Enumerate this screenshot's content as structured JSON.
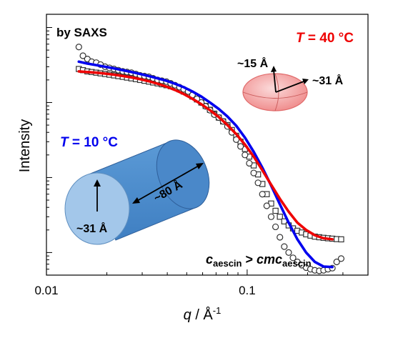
{
  "chart_data": {
    "type": "scatter",
    "title": "",
    "xlabel": {
      "var": "q",
      "unit": " / Å",
      "sup": "-1"
    },
    "ylabel": "Intensity",
    "xscale": "log",
    "yscale": "log",
    "xlim": [
      0.01,
      0.4
    ],
    "x_ticks": [
      {
        "value": 0.01,
        "label": "0.01"
      },
      {
        "value": 0.1,
        "label": "0.1"
      }
    ],
    "y_ticks_unlabeled": [
      0.1,
      1,
      10,
      100
    ],
    "ylim": [
      0.05,
      150
    ],
    "series": [
      {
        "marker": "circle",
        "condition": "T = 10 °C",
        "x": [
          0.0145,
          0.0152,
          0.016,
          0.0168,
          0.0177,
          0.0186,
          0.0196,
          0.0206,
          0.0217,
          0.0228,
          0.024,
          0.0252,
          0.0265,
          0.0279,
          0.0293,
          0.0308,
          0.0324,
          0.034,
          0.0358,
          0.0376,
          0.0396,
          0.0416,
          0.0437,
          0.046,
          0.0483,
          0.0508,
          0.0534,
          0.0562,
          0.0591,
          0.0621,
          0.0653,
          0.0686,
          0.0722,
          0.0759,
          0.0798,
          0.0839,
          0.0882,
          0.0927,
          0.0975,
          0.1025,
          0.1078,
          0.1133,
          0.1191,
          0.1252,
          0.1317,
          0.1385,
          0.1456,
          0.1531,
          0.161,
          0.1692,
          0.1779,
          0.1871,
          0.1967,
          0.2068,
          0.2174,
          0.2286,
          0.2403,
          0.2527,
          0.2657,
          0.2793,
          0.294
        ],
        "y": [
          55,
          42,
          38,
          35,
          34,
          32,
          30,
          29,
          28,
          27,
          26,
          25.5,
          25,
          24,
          23,
          22.5,
          22,
          21,
          20,
          19.5,
          19,
          18,
          17,
          16,
          15,
          14,
          12.6,
          11.2,
          10,
          8.9,
          7.9,
          6.9,
          6.3,
          5.6,
          4.8,
          4,
          3.2,
          2.6,
          2,
          1.55,
          1.15,
          0.85,
          0.6,
          0.42,
          0.3,
          0.22,
          0.16,
          0.12,
          0.1,
          0.085,
          0.075,
          0.068,
          0.063,
          0.06,
          0.058,
          0.057,
          0.058,
          0.06,
          0.062,
          0.075,
          0.083
        ]
      },
      {
        "marker": "square",
        "condition": "T = 40 °C",
        "x": [
          0.0145,
          0.0152,
          0.016,
          0.0168,
          0.0177,
          0.0186,
          0.0196,
          0.0206,
          0.0217,
          0.0228,
          0.024,
          0.0252,
          0.0265,
          0.0279,
          0.0293,
          0.0308,
          0.0324,
          0.034,
          0.0358,
          0.0376,
          0.0396,
          0.0416,
          0.0437,
          0.046,
          0.0483,
          0.0508,
          0.0534,
          0.0562,
          0.0591,
          0.0621,
          0.0653,
          0.0686,
          0.0722,
          0.0759,
          0.0798,
          0.0839,
          0.0882,
          0.0927,
          0.0975,
          0.1025,
          0.1078,
          0.1133,
          0.1191,
          0.1252,
          0.1317,
          0.1385,
          0.1456,
          0.1531,
          0.161,
          0.1692,
          0.1779,
          0.1871,
          0.1967,
          0.2068,
          0.2174,
          0.2286,
          0.2403,
          0.2527,
          0.2657,
          0.2793,
          0.294
        ],
        "y": [
          28,
          27,
          26,
          25.5,
          25,
          24.5,
          24,
          23.5,
          23,
          22.5,
          22,
          21.5,
          21,
          20.5,
          20,
          19.5,
          19,
          18.5,
          18,
          17.5,
          17,
          16.5,
          16,
          15,
          14,
          13.2,
          12,
          11,
          10,
          9,
          8,
          7.1,
          6.3,
          5.6,
          5,
          4.3,
          3.6,
          3,
          2.4,
          1.9,
          1.45,
          1.1,
          0.82,
          0.6,
          0.45,
          0.36,
          0.3,
          0.26,
          0.23,
          0.21,
          0.195,
          0.185,
          0.175,
          0.168,
          0.163,
          0.16,
          0.157,
          0.155,
          0.153,
          0.151,
          0.15
        ]
      },
      {
        "marker": "line",
        "color": "#0000ee",
        "condition": "T = 10 °C",
        "x": [
          0.0145,
          0.016,
          0.0177,
          0.0196,
          0.0217,
          0.024,
          0.0265,
          0.0293,
          0.0324,
          0.0358,
          0.0396,
          0.0437,
          0.0483,
          0.0534,
          0.0591,
          0.0653,
          0.0722,
          0.0798,
          0.0882,
          0.0975,
          0.1078,
          0.1191,
          0.1317,
          0.1456,
          0.161,
          0.1779,
          0.1967,
          0.2174,
          0.2403,
          0.2657
        ],
        "y": [
          35,
          33,
          31.5,
          30,
          28.5,
          27,
          25.5,
          24,
          22.5,
          21,
          19.5,
          17.8,
          16,
          14,
          12,
          10,
          8.2,
          6.5,
          4.9,
          3.4,
          2.2,
          1.35,
          0.78,
          0.44,
          0.25,
          0.15,
          0.1,
          0.075,
          0.065,
          0.064
        ]
      },
      {
        "marker": "line",
        "color": "#ee0000",
        "condition": "T = 40 °C",
        "x": [
          0.0145,
          0.016,
          0.0177,
          0.0196,
          0.0217,
          0.024,
          0.0265,
          0.0293,
          0.0324,
          0.0358,
          0.0396,
          0.0437,
          0.0483,
          0.0534,
          0.0591,
          0.0653,
          0.0722,
          0.0798,
          0.0882,
          0.0975,
          0.1078,
          0.1191,
          0.1317,
          0.1456,
          0.161,
          0.1779,
          0.1967,
          0.2174,
          0.2403,
          0.2657
        ],
        "y": [
          26,
          25.5,
          25,
          24.3,
          23.5,
          22.6,
          21.6,
          20.5,
          19.2,
          17.8,
          16.3,
          14.7,
          13,
          11.2,
          9.5,
          7.9,
          6.4,
          5,
          3.8,
          2.75,
          1.9,
          1.25,
          0.8,
          0.52,
          0.35,
          0.25,
          0.2,
          0.17,
          0.155,
          0.15
        ]
      }
    ]
  },
  "annotations": {
    "method": "by SAXS",
    "temp_low": {
      "var": "T",
      "text": " = 10 °C",
      "color": "#0000ee"
    },
    "temp_high": {
      "var": "T",
      "text": " = 40 °C",
      "color": "#ee0000"
    },
    "cyl_length": "~80 Å",
    "cyl_radius": "~31 Å",
    "ell_minor": "~15 Å",
    "ell_major": "~31 Å",
    "conc": {
      "c": "c",
      "csub": "aescin",
      "gt": " > ",
      "cmc": "cmc",
      "cmcsub": "aescin"
    }
  },
  "colors": {
    "blue_fit": "#0000ee",
    "red_fit": "#ee0000",
    "cylinder_body": "#4e8fd0",
    "cylinder_cap": "#9cc3e8",
    "ellipsoid": "#f4a6a6"
  }
}
